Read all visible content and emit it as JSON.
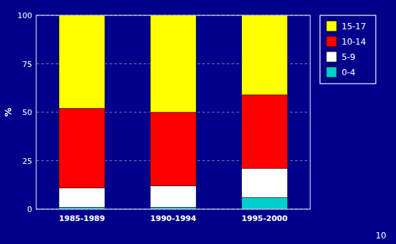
{
  "chart_data": {
    "type": "bar",
    "stacked": true,
    "categories": [
      "1985-1989",
      "1990-1994",
      "1995-2000"
    ],
    "series": [
      {
        "name": "0-4",
        "color": "#00cfcf",
        "values": [
          1,
          1,
          6
        ]
      },
      {
        "name": "5-9",
        "color": "#ffffff",
        "values": [
          10,
          11,
          15
        ]
      },
      {
        "name": "10-14",
        "color": "#ff0000",
        "values": [
          41,
          38,
          38
        ]
      },
      {
        "name": "15-17",
        "color": "#ffff00",
        "values": [
          48,
          50,
          41
        ]
      }
    ],
    "y_label": "%",
    "ylim": [
      0,
      100
    ],
    "yticks": [
      0,
      25,
      50,
      75,
      100
    ],
    "grid": true,
    "legend": "right",
    "annotation": "10"
  }
}
